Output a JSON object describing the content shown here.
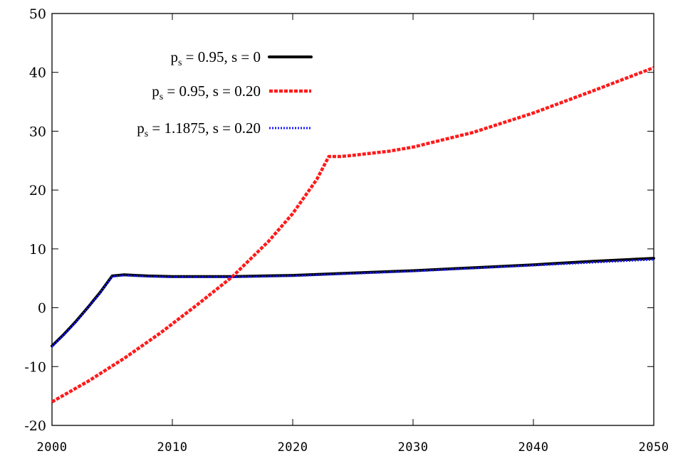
{
  "chart_data": {
    "type": "line",
    "title": "",
    "xlabel": "",
    "ylabel": "",
    "xlim": [
      2000,
      2050
    ],
    "ylim": [
      -20,
      50
    ],
    "x_ticks": [
      2000,
      2010,
      2020,
      2030,
      2040,
      2050
    ],
    "x_tick_labels": [
      "2000",
      "2010",
      "2020",
      "2030",
      "2040",
      "2050"
    ],
    "y_ticks": [
      -20,
      -10,
      0,
      10,
      20,
      30,
      40,
      50
    ],
    "y_tick_labels": [
      "-20",
      "-10",
      "0",
      "10",
      "20",
      "30",
      "40",
      "50"
    ],
    "grid": false,
    "legend_position": "top-left",
    "series": [
      {
        "name": "p_s = 0.95, s = 0",
        "legend": {
          "pre": "p",
          "sub": "s",
          "post": " = 0.95, s = 0"
        },
        "color": "#000000",
        "style": "solid",
        "x": [
          2000,
          2001,
          2002,
          2003,
          2004,
          2005,
          2006,
          2007,
          2008,
          2010,
          2012,
          2015,
          2020,
          2025,
          2030,
          2035,
          2040,
          2045,
          2050
        ],
        "y": [
          -6.5,
          -4.5,
          -2.3,
          0.1,
          2.6,
          5.4,
          5.6,
          5.5,
          5.4,
          5.3,
          5.3,
          5.3,
          5.5,
          5.9,
          6.3,
          6.8,
          7.3,
          7.9,
          8.4
        ]
      },
      {
        "name": "p_s = 0.95, s = 0.20",
        "legend": {
          "pre": "p",
          "sub": "s",
          "post": " = 0.95, s = 0.20"
        },
        "color": "#ff1a1a",
        "style": "dashed",
        "x": [
          2000,
          2003,
          2006,
          2009,
          2012,
          2015,
          2018,
          2020,
          2022,
          2023,
          2024,
          2025,
          2028,
          2030,
          2035,
          2040,
          2045,
          2050
        ],
        "y": [
          -16,
          -12.5,
          -8.6,
          -4.3,
          0.4,
          5.3,
          11.3,
          16.0,
          21.8,
          25.7,
          25.7,
          25.9,
          26.6,
          27.3,
          29.8,
          33.1,
          36.9,
          40.8
        ]
      },
      {
        "name": "p_s = 1.1875, s = 0.20",
        "legend": {
          "pre": "p",
          "sub": "s",
          "post": " = 1.1875, s = 0.20"
        },
        "color": "#1a1aff",
        "style": "dotted",
        "x": [
          2000,
          2001,
          2002,
          2003,
          2004,
          2005,
          2006,
          2007,
          2008,
          2010,
          2012,
          2015,
          2020,
          2025,
          2030,
          2035,
          2040,
          2045,
          2050
        ],
        "y": [
          -6.6,
          -4.6,
          -2.4,
          0.0,
          2.5,
          5.3,
          5.5,
          5.4,
          5.3,
          5.2,
          5.2,
          5.2,
          5.4,
          5.8,
          6.2,
          6.7,
          7.2,
          7.7,
          8.2
        ]
      }
    ]
  }
}
